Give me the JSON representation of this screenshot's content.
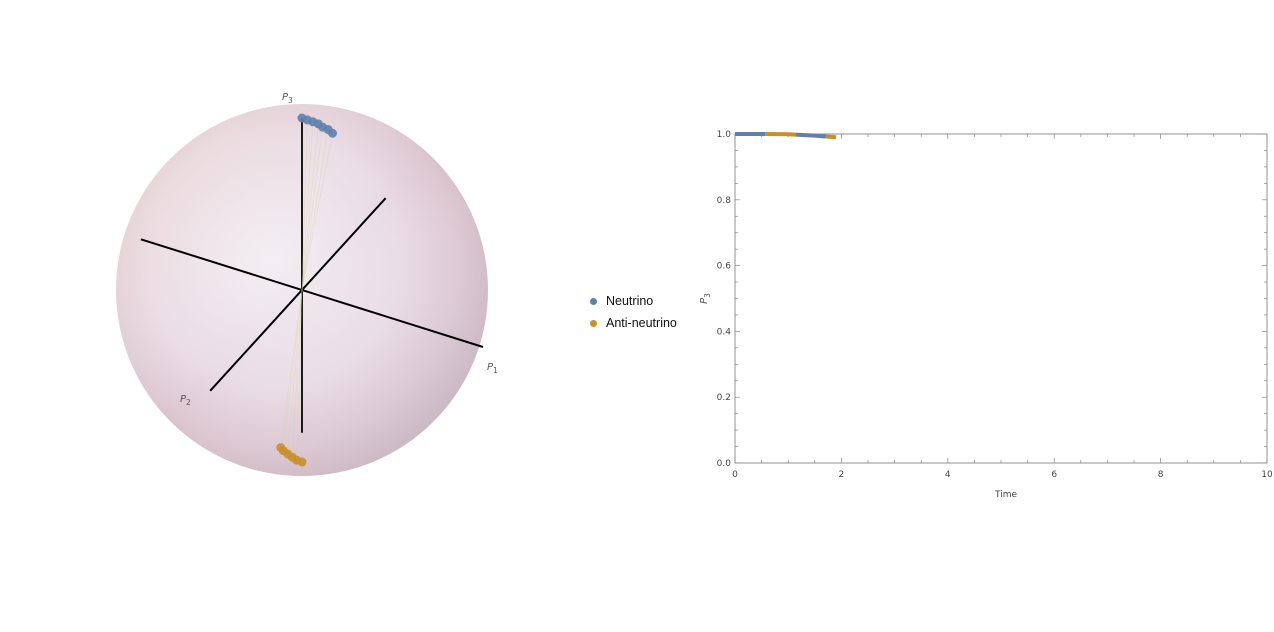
{
  "chart_data": [
    {
      "type": "scatter",
      "projection": "bloch-sphere-3d",
      "axis_labels": {
        "p1": "P",
        "p2": "P",
        "p3": "P",
        "p1_sub": "1",
        "p2_sub": "2",
        "p3_sub": "3"
      },
      "series": [
        {
          "name": "Neutrino",
          "color": "#5e81ac",
          "points": [
            [
              0.0,
              0.0,
              1.0
            ],
            [
              0.03,
              0.0,
              0.999
            ],
            [
              0.06,
              0.0,
              0.998
            ],
            [
              0.09,
              0.0,
              0.996
            ],
            [
              0.12,
              0.01,
              0.993
            ],
            [
              0.15,
              0.01,
              0.989
            ],
            [
              0.18,
              0.02,
              0.984
            ]
          ]
        },
        {
          "name": "Anti-neutrino",
          "color": "#c98f2c",
          "points": [
            [
              0.0,
              0.0,
              -1.0
            ],
            [
              -0.03,
              0.0,
              -0.999
            ],
            [
              -0.06,
              -0.01,
              -0.998
            ],
            [
              -0.09,
              -0.02,
              -0.996
            ],
            [
              -0.12,
              -0.03,
              -0.993
            ],
            [
              -0.14,
              -0.04,
              -0.989
            ]
          ]
        }
      ]
    },
    {
      "type": "line",
      "xlabel": "Time",
      "ylabel": "P",
      "ylabel_sub": "3",
      "xlim": [
        0,
        10
      ],
      "ylim": [
        0.0,
        1.0
      ],
      "xticks": [
        "0",
        "2",
        "4",
        "6",
        "8",
        "10"
      ],
      "yticks": [
        "0.0",
        "0.2",
        "0.4",
        "0.6",
        "0.8",
        "1.0"
      ],
      "series": [
        {
          "name": "Neutrino",
          "color": "#5e81ac",
          "x": [
            0,
            0.5,
            1.0,
            1.5,
            1.9
          ],
          "y": [
            1.0,
            1.0,
            0.999,
            0.995,
            0.99
          ]
        },
        {
          "name": "Anti-neutrino",
          "color": "#c98f2c",
          "x": [
            0,
            0.5,
            1.0,
            1.5,
            1.9
          ],
          "y": [
            1.0,
            1.0,
            0.999,
            0.995,
            0.99
          ]
        }
      ]
    }
  ]
}
